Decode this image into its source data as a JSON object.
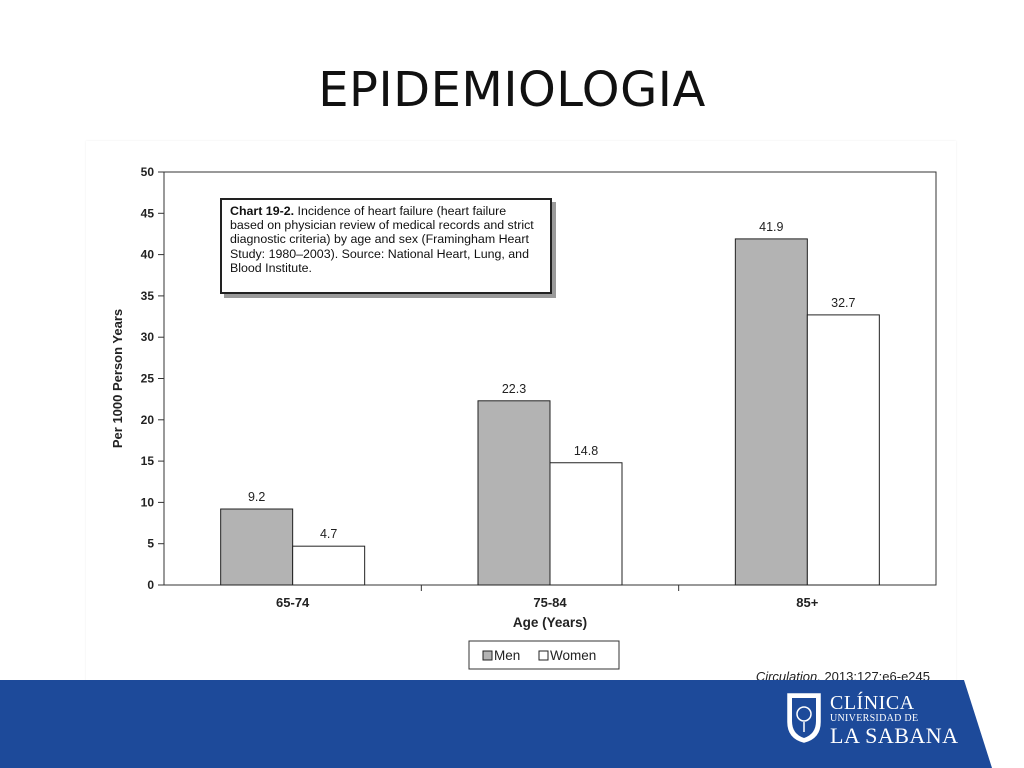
{
  "slide": {
    "title": "EPIDEMIOLOGIA"
  },
  "chart_data": {
    "type": "bar",
    "categories": [
      "65-74",
      "75-84",
      "85+"
    ],
    "series": [
      {
        "name": "Men",
        "values": [
          9.2,
          22.3,
          41.9
        ],
        "color": "#b3b3b3"
      },
      {
        "name": "Women",
        "values": [
          4.7,
          14.8,
          32.7
        ],
        "color": "#ffffff"
      }
    ],
    "data_labels": [
      [
        "9.2",
        "22.3",
        "41.9"
      ],
      [
        "4.7",
        "14.8",
        "32.7"
      ]
    ],
    "xlabel": "Age (Years)",
    "ylabel": "Per 1000 Person Years",
    "ylim": [
      0,
      50
    ],
    "yticks": [
      0,
      5,
      10,
      15,
      20,
      25,
      30,
      35,
      40,
      45,
      50
    ],
    "ytick_labels": [
      "0",
      "5",
      "10",
      "15",
      "20",
      "25",
      "30",
      "35",
      "40",
      "45",
      "50"
    ],
    "legend_placement": "bottom-center",
    "grid": false
  },
  "caption": {
    "label": "Chart 19-2.",
    "text": "Incidence of heart failure (heart failure based on physician review of medical records and strict diagnostic criteria) by age and sex (Framingham Heart Study: 1980–2003). Source: National Heart, Lung, and Blood Institute."
  },
  "citation": {
    "journal": "Circulation.",
    "details": " 2013;127:e6-e245"
  },
  "logo": {
    "line1": "CLÍNICA",
    "line2": "UNIVERSIDAD DE",
    "line3": "LA SABANA"
  },
  "colors": {
    "footer_blue": "#1d4a9a",
    "men_bar": "#b3b3b3",
    "women_bar": "#ffffff"
  }
}
